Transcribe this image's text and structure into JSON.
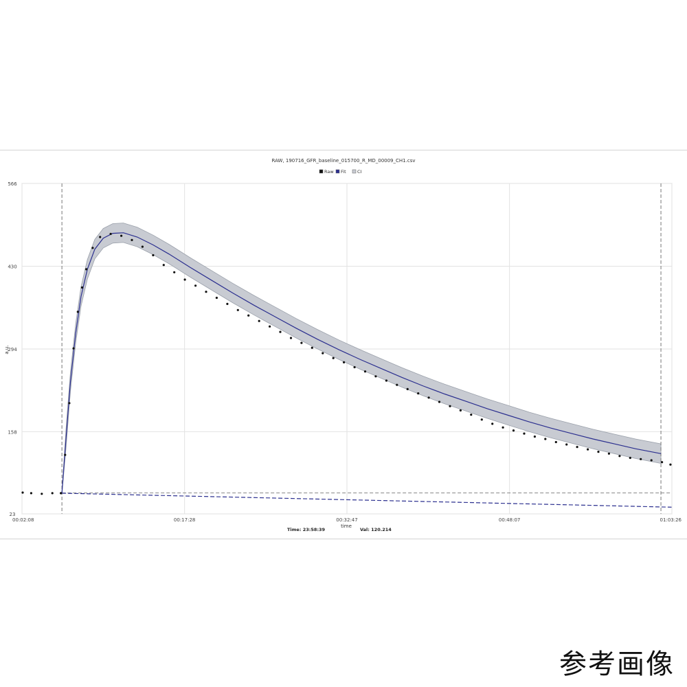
{
  "chart_data": {
    "type": "line",
    "title": "RAW, 190716_GFR_baseline_015700_R_MD_00009_CH1.csv",
    "legend": [
      {
        "label": "Raw",
        "color": "#111111"
      },
      {
        "label": "Fit",
        "color": "#2b2f8f"
      },
      {
        "label": "CI",
        "color": "#c8cbd2"
      }
    ],
    "legend_position": "top-center",
    "xlabel": "time",
    "ylabel": "a.u.",
    "x_unit": "minutes",
    "xlim": [
      2.133,
      63.433
    ],
    "ylim": [
      23,
      566
    ],
    "x_tick_labels": [
      "00:02:08",
      "00:17:28",
      "00:32:47",
      "00:48:07",
      "01:03:26"
    ],
    "x_tick_values": [
      2.133,
      17.467,
      32.783,
      48.117,
      63.433
    ],
    "y_tick_labels": [
      "566",
      "430",
      "294",
      "158",
      "23"
    ],
    "y_tick_values": [
      566,
      430,
      294,
      158,
      23
    ],
    "grid": true,
    "vertical_markers_x": [
      5.9,
      62.4
    ],
    "baseline_level": 57.5,
    "series": [
      {
        "name": "Raw",
        "style": "dots",
        "color": "#111111",
        "x": [
          2.2,
          3.0,
          4.0,
          5.0,
          5.8,
          6.2,
          6.6,
          7.0,
          7.4,
          7.8,
          8.2,
          8.8,
          9.5,
          10.5,
          11.5,
          12.5,
          13.5,
          14.5,
          15.5,
          16.5,
          17.5,
          18.5,
          19.5,
          20.5,
          21.5,
          22.5,
          23.5,
          24.5,
          25.5,
          26.5,
          27.5,
          28.5,
          29.5,
          30.5,
          31.5,
          32.5,
          33.5,
          34.5,
          35.5,
          36.5,
          37.5,
          38.5,
          39.5,
          40.5,
          41.5,
          42.5,
          43.5,
          44.5,
          45.5,
          46.5,
          47.5,
          48.5,
          49.5,
          50.5,
          51.5,
          52.5,
          53.5,
          54.5,
          55.5,
          56.5,
          57.5,
          58.5,
          59.5,
          60.5,
          61.5,
          62.5,
          63.3
        ],
        "y": [
          58,
          57,
          56,
          57,
          57,
          120,
          205,
          295,
          355,
          395,
          425,
          460,
          478,
          483,
          480,
          473,
          462,
          448,
          432,
          420,
          408,
          398,
          388,
          378,
          368,
          358,
          349,
          340,
          331,
          322,
          312,
          304,
          296,
          287,
          279,
          272,
          264,
          257,
          249,
          242,
          235,
          228,
          221,
          214,
          207,
          200,
          193,
          186,
          178,
          171,
          165,
          160,
          155,
          150,
          146,
          141,
          137,
          133,
          129,
          125,
          122,
          118,
          115,
          113,
          111,
          108,
          104
        ]
      },
      {
        "name": "Fit",
        "style": "line",
        "color": "#2b2f8f",
        "x": [
          5.9,
          6.3,
          6.7,
          7.2,
          7.7,
          8.3,
          9.0,
          9.8,
          10.7,
          11.7,
          13.0,
          14.5,
          16.0,
          18.0,
          20.0,
          22.0,
          24.0,
          26.0,
          28.0,
          30.0,
          32.0,
          34.0,
          36.0,
          38.0,
          40.0,
          42.0,
          44.0,
          46.0,
          48.0,
          50.0,
          52.0,
          54.0,
          56.0,
          58.0,
          60.0,
          62.4
        ],
        "y": [
          57,
          150,
          240,
          320,
          380,
          425,
          458,
          476,
          484,
          485,
          478,
          465,
          450,
          428,
          407,
          386,
          366,
          347,
          328,
          310,
          293,
          277,
          262,
          247,
          233,
          220,
          208,
          196,
          185,
          174,
          164,
          155,
          146,
          138,
          130,
          122
        ]
      },
      {
        "name": "CI",
        "style": "band",
        "color": "#c8cbd2",
        "x": [
          5.9,
          6.3,
          6.7,
          7.2,
          7.7,
          8.3,
          9.0,
          9.8,
          10.7,
          11.7,
          13.0,
          14.5,
          16.0,
          18.0,
          20.0,
          22.0,
          24.0,
          26.0,
          28.0,
          30.0,
          32.0,
          34.0,
          36.0,
          38.0,
          40.0,
          42.0,
          44.0,
          46.0,
          48.0,
          50.0,
          52.0,
          54.0,
          56.0,
          58.0,
          60.0,
          62.4
        ],
        "half_width": 16
      },
      {
        "name": "Baseline fit",
        "style": "dashed",
        "color": "#2b2f8f",
        "x": [
          5.9,
          63.4
        ],
        "y": [
          57,
          34
        ]
      }
    ]
  },
  "status": {
    "time_label": "Time: 23:58:39",
    "value_label": "Val: 120.214"
  },
  "caption": "参考画像"
}
